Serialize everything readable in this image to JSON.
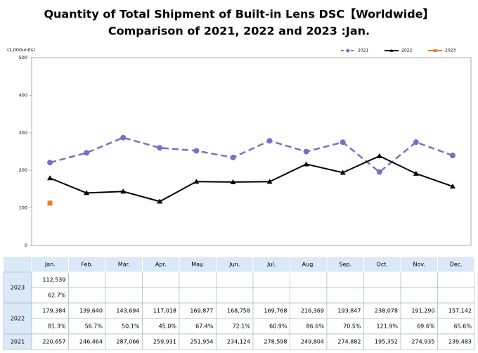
{
  "chart_data": {
    "type": "line",
    "title": "Quantity of Total Shipment of Built-in Lens DSC【Worldwide】",
    "subtitle": "Comparison of 2021, 2022 and 2023 :Jan.",
    "y_label": "(1,000units)",
    "categories": [
      "Jan.",
      "Feb.",
      "Mar.",
      "Apr.",
      "May.",
      "Jun.",
      "Jul.",
      "Aug.",
      "Sep.",
      "Oct.",
      "Nov.",
      "Dec."
    ],
    "ylim": [
      0,
      500
    ],
    "yticks": [
      0,
      100,
      200,
      300,
      400,
      500
    ],
    "grid": false,
    "legend": "top-right",
    "series": [
      {
        "name": "2021",
        "color": "#7571c8",
        "dash": true,
        "marker": "circle",
        "values": [
          220.657,
          246.464,
          287.066,
          259.931,
          251.954,
          234.124,
          278.598,
          249.804,
          274.882,
          195.352,
          274.935,
          239.483
        ],
        "value_labels": [
          "220,657",
          "246,464",
          "287,066",
          "259,931",
          "251,954",
          "234,124",
          "278,598",
          "249,804",
          "274,882",
          "195,352",
          "274,935",
          "239,483"
        ]
      },
      {
        "name": "2022",
        "color": "#000000",
        "dash": false,
        "marker": "triangle",
        "values": [
          179.384,
          139.64,
          143.694,
          117.018,
          169.877,
          168.758,
          169.768,
          216.369,
          193.847,
          238.078,
          191.29,
          157.142
        ],
        "value_labels": [
          "179,384",
          "139,640",
          "143,694",
          "117,018",
          "169,877",
          "168,758",
          "169,768",
          "216,369",
          "193,847",
          "238,078",
          "191,290",
          "157,142"
        ],
        "ratio_labels": [
          "81.3%",
          "56.7%",
          "50.1%",
          "45.0%",
          "67.4%",
          "72.1%",
          "60.9%",
          "86.6%",
          "70.5%",
          "121.9%",
          "69.6%",
          "65.6%"
        ]
      },
      {
        "name": "2023",
        "color": "#f07c22",
        "dash": false,
        "marker": "square",
        "values": [
          112.539,
          null,
          null,
          null,
          null,
          null,
          null,
          null,
          null,
          null,
          null,
          null
        ],
        "value_labels": [
          "112,539",
          null,
          null,
          null,
          null,
          null,
          null,
          null,
          null,
          null,
          null,
          null
        ],
        "ratio_labels": [
          "62.7%",
          null,
          null,
          null,
          null,
          null,
          null,
          null,
          null,
          null,
          null,
          null
        ]
      }
    ]
  }
}
